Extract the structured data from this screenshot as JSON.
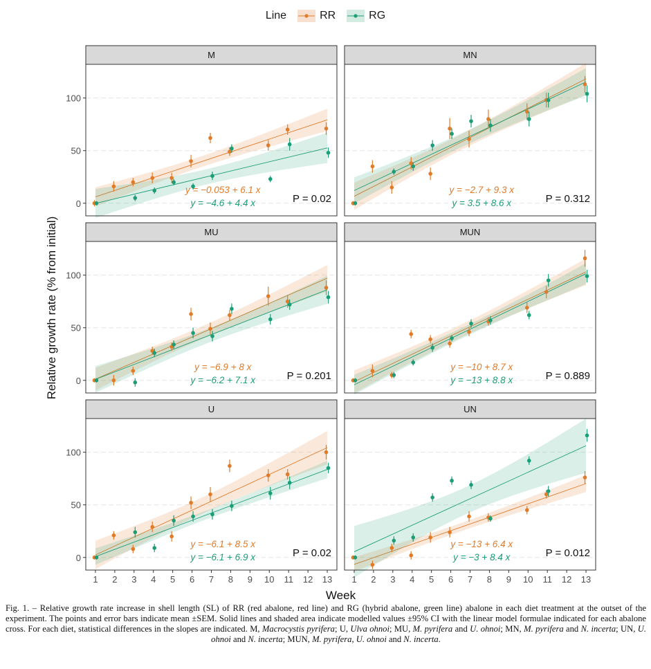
{
  "legend": {
    "title": "Line",
    "items": [
      {
        "label": "RR",
        "color": "#e07b2a"
      },
      {
        "label": "RG",
        "color": "#1b9e77"
      }
    ]
  },
  "colors": {
    "RR": "#e07b2a",
    "RG": "#1b9e77",
    "strip_bg": "#d9d9d9",
    "grid": "#e5e5e5"
  },
  "chart_data": {
    "type": "scatter",
    "xlabel": "Week",
    "ylabel": "Relative growth rate (% from initial)",
    "x_ticks": [
      1,
      2,
      3,
      4,
      5,
      6,
      7,
      8,
      9,
      10,
      11,
      12,
      13
    ],
    "y_ticks": [
      0,
      50,
      100
    ],
    "xlim": [
      0.5,
      13.5
    ],
    "ylim": [
      -12,
      132
    ],
    "grid": true,
    "legend_position": "top",
    "panels": [
      {
        "name": "M",
        "p_value": "P = 0.02",
        "RR": {
          "formula": "y = −0.053 + 6.1 x",
          "intercept": -0.053,
          "slope": 6.1,
          "points": [
            [
              1,
              0,
              3
            ],
            [
              2,
              16,
              5
            ],
            [
              3,
              20,
              4
            ],
            [
              4,
              24,
              5
            ],
            [
              5,
              24,
              5
            ],
            [
              6,
              40,
              6
            ],
            [
              7,
              62,
              5
            ],
            [
              8,
              49,
              4
            ],
            [
              10,
              55,
              5
            ],
            [
              11,
              70,
              5
            ],
            [
              13,
              71,
              6
            ]
          ]
        },
        "RG": {
          "formula": "y = −4.6 + 4.4 x",
          "intercept": -4.6,
          "slope": 4.4,
          "points": [
            [
              1,
              0,
              2
            ],
            [
              3,
              5,
              3
            ],
            [
              4,
              12,
              3
            ],
            [
              5,
              20,
              3
            ],
            [
              6,
              16,
              3
            ],
            [
              7,
              26,
              4
            ],
            [
              8,
              52,
              4
            ],
            [
              10,
              23,
              3
            ],
            [
              11,
              56,
              6
            ],
            [
              13,
              48,
              5
            ]
          ]
        }
      },
      {
        "name": "MN",
        "p_value": "P = 0.312",
        "RR": {
          "formula": "y = −2.7 + 9.3 x",
          "intercept": -2.7,
          "slope": 9.3,
          "points": [
            [
              1,
              0,
              2
            ],
            [
              2,
              35,
              6
            ],
            [
              3,
              15,
              6
            ],
            [
              4,
              38,
              6
            ],
            [
              5,
              28,
              6
            ],
            [
              6,
              71,
              10
            ],
            [
              7,
              61,
              8
            ],
            [
              8,
              80,
              9
            ],
            [
              10,
              87,
              8
            ],
            [
              11,
              98,
              7
            ],
            [
              13,
              113,
              8
            ]
          ]
        },
        "RG": {
          "formula": "y = 3.5 + 8.6 x",
          "intercept": 3.5,
          "slope": 8.6,
          "points": [
            [
              1,
              0,
              2
            ],
            [
              3,
              30,
              3
            ],
            [
              4,
              35,
              4
            ],
            [
              5,
              55,
              5
            ],
            [
              6,
              66,
              5
            ],
            [
              7,
              78,
              6
            ],
            [
              8,
              74,
              6
            ],
            [
              10,
              80,
              7
            ],
            [
              11,
              98,
              7
            ],
            [
              13,
              104,
              8
            ]
          ]
        }
      },
      {
        "name": "MU",
        "p_value": "P = 0.201",
        "RR": {
          "formula": "y = −6.9 + 8 x",
          "intercept": -6.9,
          "slope": 8,
          "points": [
            [
              1,
              0,
              2
            ],
            [
              2,
              0,
              5
            ],
            [
              3,
              9,
              4
            ],
            [
              4,
              28,
              4
            ],
            [
              5,
              32,
              4
            ],
            [
              6,
              63,
              6
            ],
            [
              7,
              49,
              6
            ],
            [
              8,
              62,
              5
            ],
            [
              10,
              80,
              9
            ],
            [
              11,
              75,
              6
            ],
            [
              13,
              88,
              7
            ]
          ]
        },
        "RG": {
          "formula": "y = −6.2 + 7.1 x",
          "intercept": -6.2,
          "slope": 7.1,
          "points": [
            [
              1,
              0,
              2
            ],
            [
              3,
              -2,
              4
            ],
            [
              4,
              26,
              4
            ],
            [
              5,
              34,
              4
            ],
            [
              6,
              45,
              5
            ],
            [
              7,
              42,
              5
            ],
            [
              8,
              68,
              5
            ],
            [
              10,
              58,
              5
            ],
            [
              11,
              72,
              5
            ],
            [
              13,
              79,
              6
            ]
          ]
        }
      },
      {
        "name": "MUN",
        "p_value": "P = 0.889",
        "RR": {
          "formula": "y = −10 + 8.7 x",
          "intercept": -10,
          "slope": 8.7,
          "points": [
            [
              1,
              0,
              2
            ],
            [
              2,
              9,
              6
            ],
            [
              3,
              5,
              3
            ],
            [
              4,
              44,
              4
            ],
            [
              5,
              39,
              4
            ],
            [
              6,
              35,
              4
            ],
            [
              7,
              46,
              4
            ],
            [
              8,
              56,
              4
            ],
            [
              10,
              69,
              5
            ],
            [
              11,
              84,
              6
            ],
            [
              13,
              116,
              8
            ]
          ]
        },
        "RG": {
          "formula": "y = −13 + 8.8 x",
          "intercept": -13,
          "slope": 8.8,
          "points": [
            [
              1,
              0,
              2
            ],
            [
              3,
              5,
              3
            ],
            [
              4,
              17,
              3
            ],
            [
              5,
              31,
              4
            ],
            [
              6,
              40,
              3
            ],
            [
              7,
              54,
              4
            ],
            [
              8,
              57,
              4
            ],
            [
              10,
              62,
              4
            ],
            [
              11,
              95,
              6
            ],
            [
              13,
              99,
              6
            ]
          ]
        }
      },
      {
        "name": "U",
        "p_value": "P = 0.02",
        "RR": {
          "formula": "y = −6.1 + 8.5 x",
          "intercept": -6.1,
          "slope": 8.5,
          "points": [
            [
              1,
              0,
              2
            ],
            [
              2,
              21,
              4
            ],
            [
              3,
              8,
              4
            ],
            [
              4,
              29,
              5
            ],
            [
              5,
              20,
              5
            ],
            [
              6,
              52,
              6
            ],
            [
              7,
              60,
              7
            ],
            [
              8,
              87,
              6
            ],
            [
              10,
              78,
              6
            ],
            [
              11,
              79,
              5
            ],
            [
              13,
              100,
              7
            ]
          ]
        },
        "RG": {
          "formula": "y = −6.1 + 6.9 x",
          "intercept": -6.1,
          "slope": 6.9,
          "points": [
            [
              1,
              0,
              2
            ],
            [
              3,
              24,
              5
            ],
            [
              4,
              9,
              4
            ],
            [
              5,
              35,
              5
            ],
            [
              6,
              39,
              5
            ],
            [
              7,
              41,
              5
            ],
            [
              8,
              49,
              5
            ],
            [
              10,
              61,
              6
            ],
            [
              11,
              71,
              6
            ],
            [
              13,
              85,
              5
            ]
          ]
        }
      },
      {
        "name": "UN",
        "p_value": "P = 0.012",
        "RR": {
          "formula": "y = −13 + 6.4 x",
          "intercept": -13,
          "slope": 6.4,
          "points": [
            [
              1,
              0,
              2
            ],
            [
              2,
              -7,
              4
            ],
            [
              3,
              9,
              4
            ],
            [
              4,
              2,
              4
            ],
            [
              5,
              19,
              5
            ],
            [
              6,
              24,
              5
            ],
            [
              7,
              39,
              5
            ],
            [
              8,
              38,
              4
            ],
            [
              10,
              45,
              4
            ],
            [
              11,
              60,
              4
            ],
            [
              13,
              76,
              6
            ]
          ]
        },
        "RG": {
          "formula": "y = −3 + 8.4 x",
          "intercept": -3,
          "slope": 8.4,
          "points": [
            [
              1,
              0,
              2
            ],
            [
              3,
              16,
              4
            ],
            [
              4,
              19,
              4
            ],
            [
              5,
              57,
              4
            ],
            [
              6,
              73,
              4
            ],
            [
              7,
              69,
              4
            ],
            [
              8,
              37,
              3
            ],
            [
              10,
              92,
              4
            ],
            [
              11,
              63,
              5
            ],
            [
              13,
              116,
              6
            ]
          ]
        }
      }
    ]
  },
  "caption": {
    "segments": [
      {
        "t": "Fig. 1. – Relative growth rate increase in shell length (SL) of RR (red abalone, red line) and RG (hybrid abalone, green line) abalone in each diet treatment at the outset of the experiment. The points and error bars indicate mean ±SEM. Solid lines and shaded area indicate modelled values ±95% CI with the linear model formulae indicated for each abalone cross. For each diet, statistical differences in the slopes are indicated. M, ",
        "i": false
      },
      {
        "t": "Macrocystis pyrifera",
        "i": true
      },
      {
        "t": "; U, ",
        "i": false
      },
      {
        "t": "Ulva ohnoi",
        "i": true
      },
      {
        "t": "; MU, ",
        "i": false
      },
      {
        "t": "M. pyrifera",
        "i": true
      },
      {
        "t": " and ",
        "i": false
      },
      {
        "t": "U. ohnoi",
        "i": true
      },
      {
        "t": "; MN, ",
        "i": false
      },
      {
        "t": "M. pyrifera",
        "i": true
      },
      {
        "t": " and ",
        "i": false
      },
      {
        "t": "N. incerta",
        "i": true
      },
      {
        "t": "; UN, ",
        "i": false
      },
      {
        "t": "U. ohnoi",
        "i": true
      },
      {
        "t": " and ",
        "i": false
      },
      {
        "t": "N. incerta",
        "i": true
      },
      {
        "t": "; MUN, ",
        "i": false
      },
      {
        "t": "M. pyrifera",
        "i": true
      },
      {
        "t": ", ",
        "i": false
      },
      {
        "t": "U. ohnoi",
        "i": true
      },
      {
        "t": " and ",
        "i": false
      },
      {
        "t": "N. incerta",
        "i": true
      },
      {
        "t": ".",
        "i": false
      }
    ]
  }
}
